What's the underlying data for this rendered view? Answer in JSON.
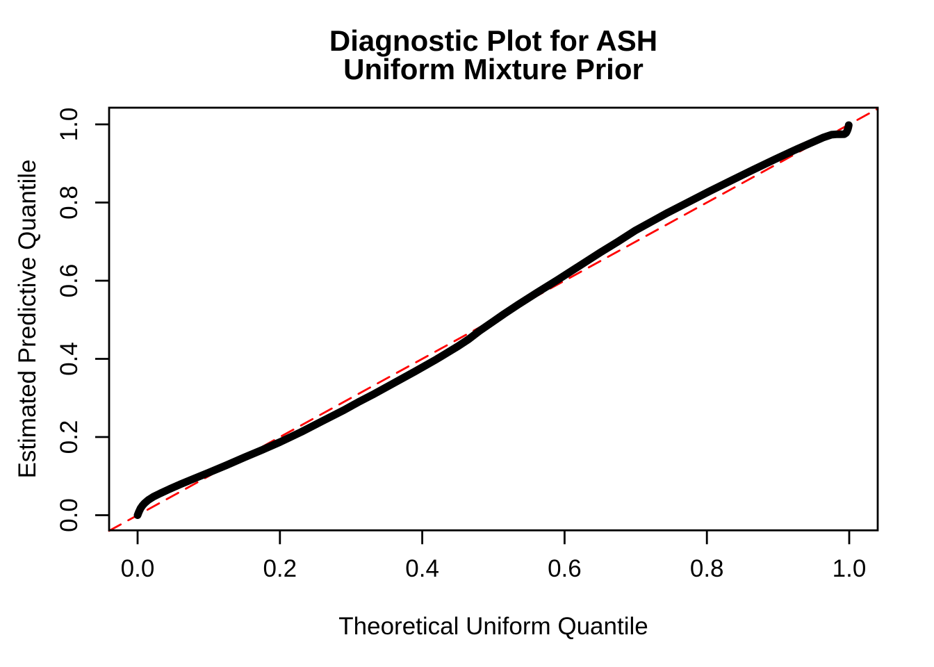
{
  "page": {
    "background": "#FFFFFF"
  },
  "chart_data": {
    "type": "scatter",
    "title_line1": "Diagnostic Plot for ASH",
    "title_line2": "Uniform Mixture Prior",
    "xlabel": "Theoretical Uniform Quantile",
    "ylabel": "Estimated Predictive Quantile",
    "xlim": [
      -0.04,
      1.04
    ],
    "ylim": [
      -0.04,
      1.04
    ],
    "grid": false,
    "legend": "none",
    "frame_color": "#000000",
    "tick_label_color": "#000000",
    "x_tick_labels": [
      "0.0",
      "0.2",
      "0.4",
      "0.6",
      "0.8",
      "1.0"
    ],
    "x_tick_values": [
      0.0,
      0.2,
      0.4,
      0.6,
      0.8,
      1.0
    ],
    "y_tick_labels": [
      "0.0",
      "0.2",
      "0.4",
      "0.6",
      "0.8",
      "1.0"
    ],
    "y_tick_values": [
      0.0,
      0.2,
      0.4,
      0.6,
      0.8,
      1.0
    ],
    "series": [
      {
        "name": "estimated-predictive-quantiles",
        "kind": "thick-point-curve",
        "color": "#000000",
        "line_width": 11,
        "dash": "solid",
        "points": [
          [
            0.0,
            0.0
          ],
          [
            0.002,
            0.009
          ],
          [
            0.004,
            0.017
          ],
          [
            0.007,
            0.025
          ],
          [
            0.01,
            0.031
          ],
          [
            0.015,
            0.039
          ],
          [
            0.022,
            0.047
          ],
          [
            0.032,
            0.056
          ],
          [
            0.045,
            0.067
          ],
          [
            0.06,
            0.079
          ],
          [
            0.08,
            0.094
          ],
          [
            0.1,
            0.109
          ],
          [
            0.125,
            0.128
          ],
          [
            0.15,
            0.148
          ],
          [
            0.175,
            0.167
          ],
          [
            0.2,
            0.187
          ],
          [
            0.23,
            0.213
          ],
          [
            0.26,
            0.241
          ],
          [
            0.29,
            0.269
          ],
          [
            0.31,
            0.289
          ],
          [
            0.33,
            0.308
          ],
          [
            0.36,
            0.338
          ],
          [
            0.39,
            0.368
          ],
          [
            0.42,
            0.399
          ],
          [
            0.45,
            0.432
          ],
          [
            0.465,
            0.45
          ],
          [
            0.48,
            0.471
          ],
          [
            0.5,
            0.496
          ],
          [
            0.515,
            0.515
          ],
          [
            0.535,
            0.539
          ],
          [
            0.56,
            0.568
          ],
          [
            0.59,
            0.602
          ],
          [
            0.62,
            0.637
          ],
          [
            0.65,
            0.672
          ],
          [
            0.675,
            0.7
          ],
          [
            0.7,
            0.729
          ],
          [
            0.72,
            0.749
          ],
          [
            0.745,
            0.774
          ],
          [
            0.775,
            0.802
          ],
          [
            0.805,
            0.83
          ],
          [
            0.835,
            0.857
          ],
          [
            0.865,
            0.884
          ],
          [
            0.895,
            0.91
          ],
          [
            0.922,
            0.933
          ],
          [
            0.948,
            0.954
          ],
          [
            0.963,
            0.966
          ],
          [
            0.975,
            0.9735
          ],
          [
            0.982,
            0.9745
          ],
          [
            0.988,
            0.9745
          ],
          [
            0.993,
            0.975
          ],
          [
            0.9955,
            0.978
          ],
          [
            0.997,
            0.983
          ],
          [
            0.998,
            0.988
          ],
          [
            0.9988,
            0.9935
          ],
          [
            0.9993,
            0.998
          ]
        ]
      },
      {
        "name": "identity-reference-line",
        "kind": "line",
        "color": "#FF0000",
        "line_width": 2.8,
        "dash": "19 12.5",
        "points": [
          [
            -0.04,
            -0.04
          ],
          [
            1.04,
            1.04
          ]
        ]
      }
    ]
  }
}
